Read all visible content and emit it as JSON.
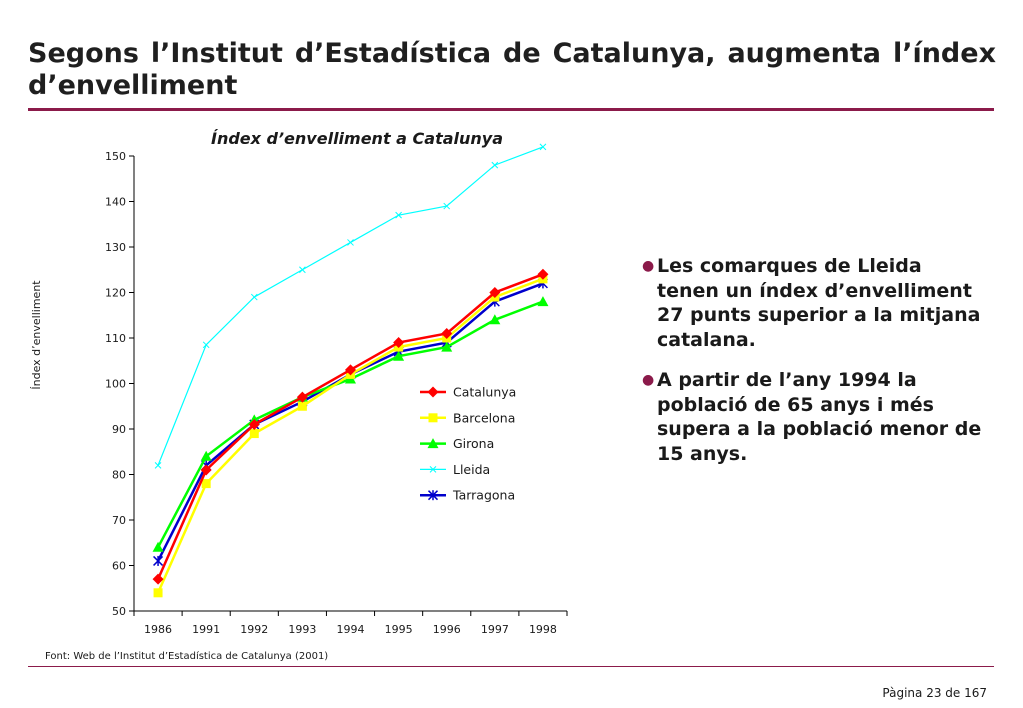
{
  "slide": {
    "title": "Segons l’Institut d’Estadística de Catalunya, augmenta l’índex d’envelliment",
    "bullets": [
      "Les comarques de Lleida tenen un índex d’envelliment 27 punts superior a la mitjana catalana.",
      "A partir de l’any 1994 la població de 65 anys i més supera a la població menor de 15 anys."
    ],
    "source": "Font: Web de l’Institut d’Estadística de Catalunya (2001)",
    "page": "Pàgina 23 de 167",
    "accent_color": "#8b1a4a"
  },
  "chart_data": {
    "type": "line",
    "title": "Índex d’envelliment a Catalunya",
    "xlabel": "",
    "ylabel": "Índex d’envelliment",
    "categories": [
      "1986",
      "1991",
      "1992",
      "1993",
      "1994",
      "1995",
      "1996",
      "1997",
      "1998"
    ],
    "ylim": [
      50,
      150
    ],
    "yticks": [
      50,
      60,
      70,
      80,
      90,
      100,
      110,
      120,
      130,
      140,
      150
    ],
    "grid": false,
    "legend_position": "right",
    "series": [
      {
        "name": "Catalunya",
        "color": "#ff0000",
        "marker": "diamond",
        "values": [
          57,
          81,
          91,
          97,
          103,
          109,
          111,
          120,
          124
        ]
      },
      {
        "name": "Barcelona",
        "color": "#ffff00",
        "marker": "square",
        "values": [
          54,
          78,
          89,
          95,
          102,
          108,
          110,
          119,
          123
        ]
      },
      {
        "name": "Girona",
        "color": "#00ff00",
        "marker": "triangle",
        "values": [
          64,
          84,
          92,
          97,
          101,
          106,
          108,
          114,
          118
        ]
      },
      {
        "name": "Lleida",
        "color": "#00ffff",
        "marker": "x",
        "values": [
          82,
          108.5,
          119,
          125,
          131,
          137,
          139,
          148,
          152
        ]
      },
      {
        "name": "Tarragona",
        "color": "#0000cc",
        "marker": "star",
        "values": [
          61,
          82,
          91,
          96,
          102,
          107,
          109,
          118,
          122
        ]
      }
    ]
  }
}
